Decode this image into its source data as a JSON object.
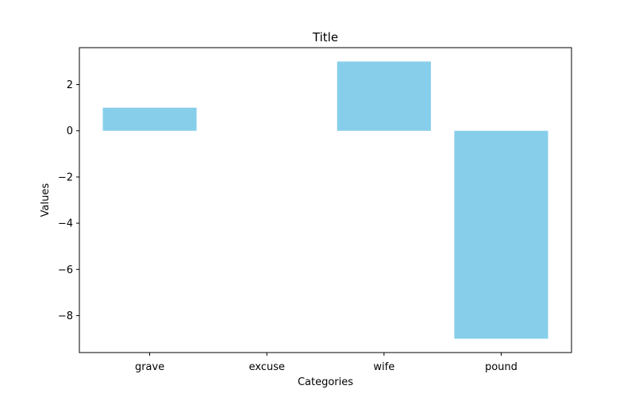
{
  "chart_data": {
    "type": "bar",
    "title": "Title",
    "xlabel": "Categories",
    "ylabel": "Values",
    "categories": [
      "grave",
      "excuse",
      "wife",
      "pound"
    ],
    "values": [
      1,
      0,
      3,
      -9
    ],
    "ylim": [
      -9.6,
      3.6
    ],
    "yticks": [
      2,
      0,
      -2,
      -4,
      -6,
      -8
    ],
    "bar_color": "#87CEEB",
    "grid": false,
    "legend": false
  }
}
